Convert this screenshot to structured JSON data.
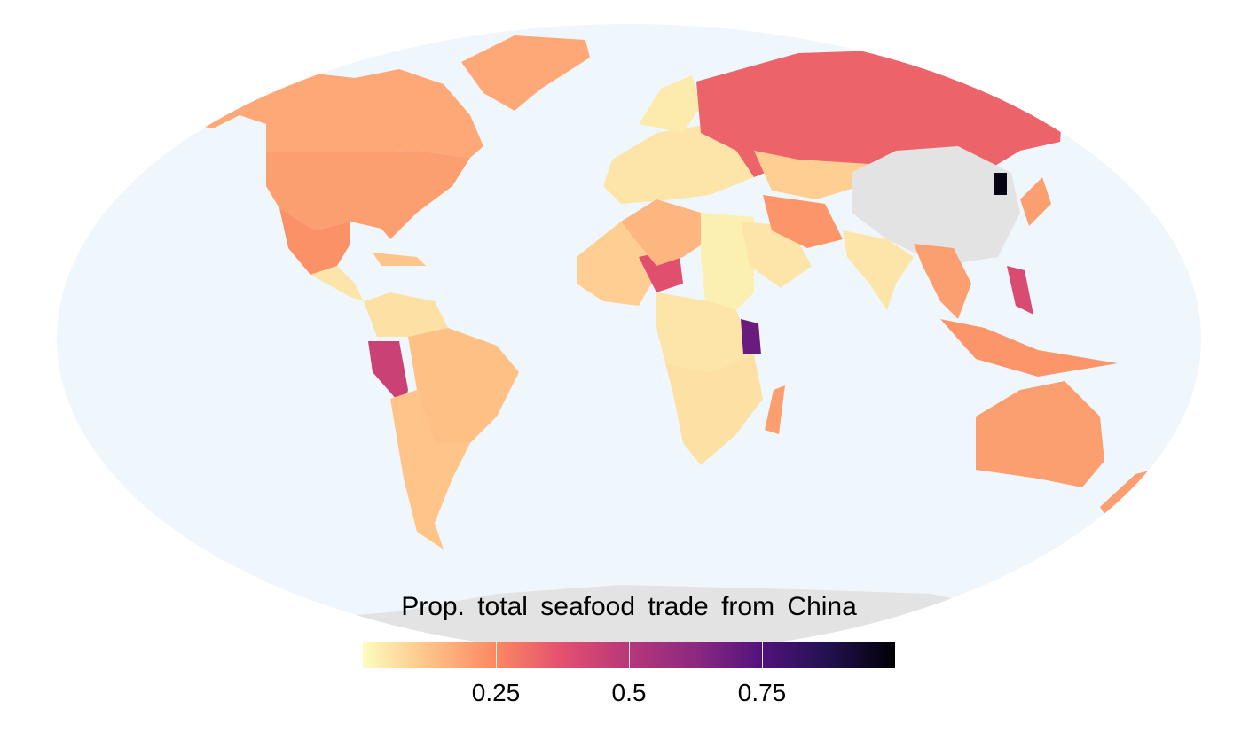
{
  "legend": {
    "title": "Prop. total seafood trade from China",
    "ticks": [
      {
        "label": "0.25",
        "value": 0.25
      },
      {
        "label": "0.5",
        "value": 0.5
      },
      {
        "label": "0.75",
        "value": 0.75
      }
    ],
    "range": [
      0,
      1
    ],
    "colors": [
      "#FCFDBF",
      "#FEC287",
      "#FB8861",
      "#E3506F",
      "#B73779",
      "#8C2981",
      "#51127C",
      "#221150",
      "#000004"
    ]
  },
  "map": {
    "projection": "robinson",
    "ocean_color": "#EFF7FC",
    "no_data_color": "#E3E3E3",
    "regions": [
      {
        "id": "canada",
        "value": 0.18
      },
      {
        "id": "alaska",
        "value": 0.18
      },
      {
        "id": "greenland",
        "value": 0.18
      },
      {
        "id": "usa",
        "value": 0.2
      },
      {
        "id": "mexico",
        "value": 0.23
      },
      {
        "id": "central-america",
        "value": 0.05
      },
      {
        "id": "caribbean",
        "value": 0.12
      },
      {
        "id": "colombia-venezuela",
        "value": 0.06
      },
      {
        "id": "brazil",
        "value": 0.13
      },
      {
        "id": "peru",
        "value": 0.45
      },
      {
        "id": "argentina-chile",
        "value": 0.12
      },
      {
        "id": "europe",
        "value": 0.05
      },
      {
        "id": "scandinavia",
        "value": 0.04
      },
      {
        "id": "russia",
        "value": 0.33
      },
      {
        "id": "kazakhstan",
        "value": 0.1
      },
      {
        "id": "china",
        "value": null
      },
      {
        "id": "korea",
        "value": 0.97
      },
      {
        "id": "japan",
        "value": 0.2
      },
      {
        "id": "west-africa",
        "value": 0.1
      },
      {
        "id": "niger",
        "value": 0.38
      },
      {
        "id": "sahel-north",
        "value": 0.15
      },
      {
        "id": "egypt-sudan",
        "value": 0.03
      },
      {
        "id": "central-africa",
        "value": 0.05
      },
      {
        "id": "southern-africa",
        "value": 0.06
      },
      {
        "id": "kenya",
        "value": 0.7
      },
      {
        "id": "madagascar",
        "value": 0.2
      },
      {
        "id": "arabia",
        "value": 0.05
      },
      {
        "id": "iran",
        "value": 0.22
      },
      {
        "id": "india",
        "value": 0.05
      },
      {
        "id": "southeast-asia",
        "value": 0.2
      },
      {
        "id": "philippines",
        "value": 0.4
      },
      {
        "id": "indonesia",
        "value": 0.22
      },
      {
        "id": "australia",
        "value": 0.2
      },
      {
        "id": "new-zealand",
        "value": 0.2
      },
      {
        "id": "antarctica",
        "value": null
      }
    ]
  }
}
